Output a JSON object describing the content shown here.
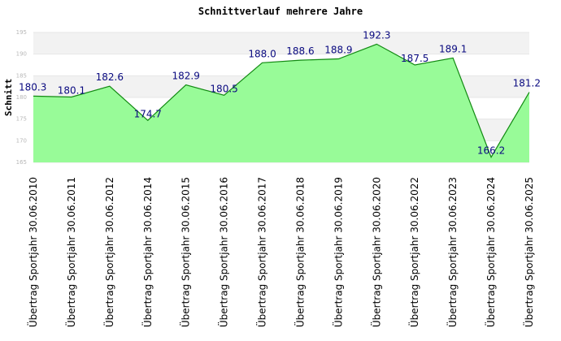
{
  "colors": {
    "area_fill": "#98fb98",
    "line": "#128a12",
    "band": "#f2f2f2",
    "grid": "#e6e6e6",
    "label": "#0a0a80"
  },
  "chart_data": {
    "type": "area",
    "title": "Schnittverlauf mehrere Jahre",
    "xlabel": "",
    "ylabel": "Schnitt",
    "ylim": [
      165,
      195
    ],
    "yticks": [
      165,
      170,
      175,
      180,
      185,
      190,
      195
    ],
    "grid": true,
    "categories": [
      "Übertrag Sportjahr 30.06.2010",
      "Übertrag Sportjahr 30.06.2011",
      "Übertrag Sportjahr 30.06.2012",
      "Übertrag Sportjahr 30.06.2014",
      "Übertrag Sportjahr 30.06.2015",
      "Übertrag Sportjahr 30.06.2016",
      "Übertrag Sportjahr 30.06.2017",
      "Übertrag Sportjahr 30.06.2018",
      "Übertrag Sportjahr 30.06.2019",
      "Übertrag Sportjahr 30.06.2020",
      "Übertrag Sportjahr 30.06.2022",
      "Übertrag Sportjahr 30.06.2023",
      "Übertrag Sportjahr 30.06.2024",
      "Übertrag Sportjahr 30.06.2025"
    ],
    "values": [
      180.3,
      180.1,
      182.6,
      174.7,
      182.9,
      180.5,
      188.0,
      188.6,
      188.9,
      192.3,
      187.5,
      189.1,
      166.2,
      181.2
    ],
    "labels": [
      "180.3",
      "180.1",
      "182.6",
      "174.7",
      "182.9",
      "180.5",
      "188.0",
      "188.6",
      "188.9",
      "192.3",
      "187.5",
      "189.1",
      "166.2",
      "181.2"
    ]
  }
}
